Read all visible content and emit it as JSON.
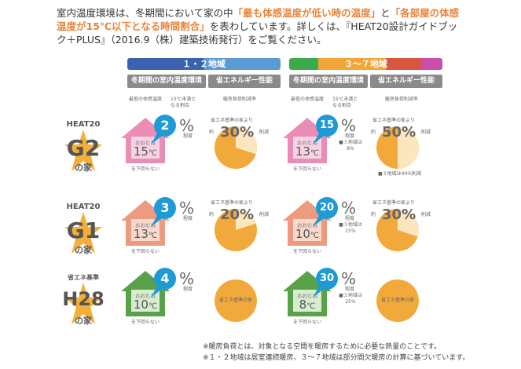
{
  "intro": {
    "p1": "室内温度環境は、冬期間において家の中",
    "h1": "「最も体感温度が低い時の温度」",
    "p2": "と",
    "h2": "「各部屋の体感温度が15℃以下となる時間割合」",
    "p3": "を表わしています。詳しくは、『HEAT20設計ガイドブック＋PLUS』（2016.9（株）建築技術発行）をご覧ください。"
  },
  "regions": [
    {
      "title": "１・２地域",
      "colors": [
        "#3a62b0",
        "#5b9bd5"
      ]
    },
    {
      "title": "３～７地域",
      "colors": [
        "#3aaa4a",
        "#f2a63a",
        "#d9573f",
        "#c94fa6"
      ]
    }
  ],
  "subheaders": {
    "indoor": "冬期間の室内温度環境",
    "energy": "省エネルギー性能"
  },
  "col_labels": {
    "min_temp": "最低の体感温度",
    "ratio": "15℃未満となる割合",
    "reduction": "暖房負荷削減率"
  },
  "common": {
    "approx": "おおむね",
    "not_below": "を下回らない",
    "degree": "程度",
    "compared": "省エネ基準の家より",
    "about": "約",
    "reduce": "削減",
    "pct": "%",
    "unit": "℃",
    "base_house": "省エネ基準の家"
  },
  "rows": [
    {
      "top": "HEAT20",
      "grade": "G2",
      "suffix": "の家",
      "house_color": "#e98cb6",
      "house_fill": "#f5d3e3",
      "left": {
        "temp": "15",
        "ratio": "2",
        "reduction": 30,
        "note": ""
      },
      "right": {
        "temp": "13",
        "ratio": "15",
        "reduction": 50,
        "note": "■３地域は8%",
        "pie_note": "■３地域は40%削減"
      }
    },
    {
      "top": "HEAT20",
      "grade": "G1",
      "suffix": "の家",
      "house_color": "#ec9a80",
      "house_fill": "#f8d9cc",
      "left": {
        "temp": "13",
        "ratio": "3",
        "reduction": 20,
        "note": ""
      },
      "right": {
        "temp": "10",
        "ratio": "20",
        "reduction": 30,
        "note": "■３地域は15%",
        "pie_note": ""
      }
    },
    {
      "top": "省エネ基準",
      "grade": "H28",
      "suffix": "の家",
      "house_color": "#5aa24a",
      "house_fill": "#d8ecd0",
      "left": {
        "temp": "10",
        "ratio": "4",
        "reduction": 0,
        "note": ""
      },
      "right": {
        "temp": "8",
        "ratio": "30",
        "reduction": 0,
        "note": "■３地域は25%",
        "pie_note": ""
      }
    }
  ],
  "colors": {
    "bubble": "#1e9ad6",
    "pie": "#f2a93b",
    "pie_light": "#fbe6c0",
    "star": "#f2b03a"
  },
  "footnotes": [
    "※暖房負荷とは、対象となる空間を暖房するために必要な熱量のことです。",
    "※１・２地域は居室連続暖房、３～７地域は部分間欠暖房の計算に基づいています。"
  ]
}
